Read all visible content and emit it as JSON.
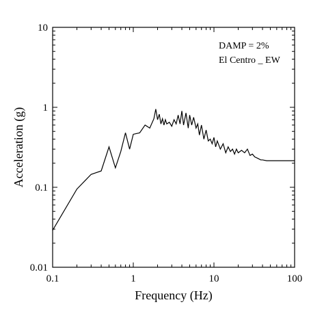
{
  "chart_data": {
    "type": "line",
    "xlabel": "Frequency (Hz)",
    "ylabel": "Acceleration (g)",
    "x_scale": "log",
    "y_scale": "log",
    "xlim": [
      0.1,
      100
    ],
    "ylim": [
      0.01,
      10
    ],
    "x_ticks": [
      "0.1",
      "1",
      "10",
      "100"
    ],
    "y_ticks": [
      "0.01",
      "0.1",
      "1",
      "10"
    ],
    "grid": false,
    "annotations": [
      "DAMP = 2%",
      "El Centro _ EW"
    ],
    "series": [
      {
        "color": "#000000",
        "x": [
          0.1,
          0.2,
          0.3,
          0.4,
          0.5,
          0.6,
          0.7,
          0.8,
          0.9,
          1.0,
          1.2,
          1.4,
          1.6,
          1.8,
          1.9,
          2.0,
          2.1,
          2.2,
          2.3,
          2.4,
          2.5,
          2.6,
          2.8,
          3.0,
          3.2,
          3.4,
          3.6,
          3.8,
          4.0,
          4.2,
          4.5,
          4.8,
          5.0,
          5.3,
          5.6,
          6.0,
          6.3,
          6.6,
          7.0,
          7.5,
          8.0,
          8.5,
          9.0,
          9.5,
          10,
          10.5,
          11,
          12,
          13,
          14,
          15,
          16,
          17,
          18,
          19,
          20,
          22,
          24,
          26,
          28,
          30,
          32,
          35,
          38,
          40,
          45,
          50,
          60,
          70,
          80,
          90,
          100
        ],
        "y": [
          0.029,
          0.095,
          0.145,
          0.16,
          0.32,
          0.175,
          0.28,
          0.48,
          0.3,
          0.46,
          0.48,
          0.6,
          0.55,
          0.72,
          0.95,
          0.7,
          0.82,
          0.62,
          0.72,
          0.6,
          0.7,
          0.62,
          0.65,
          0.58,
          0.7,
          0.62,
          0.8,
          0.62,
          0.9,
          0.6,
          0.85,
          0.55,
          0.8,
          0.6,
          0.75,
          0.55,
          0.62,
          0.45,
          0.6,
          0.4,
          0.52,
          0.38,
          0.4,
          0.35,
          0.42,
          0.32,
          0.38,
          0.3,
          0.35,
          0.27,
          0.32,
          0.28,
          0.3,
          0.26,
          0.3,
          0.27,
          0.29,
          0.27,
          0.3,
          0.25,
          0.26,
          0.24,
          0.23,
          0.22,
          0.22,
          0.215,
          0.215,
          0.215,
          0.215,
          0.215,
          0.215,
          0.215
        ]
      }
    ]
  }
}
